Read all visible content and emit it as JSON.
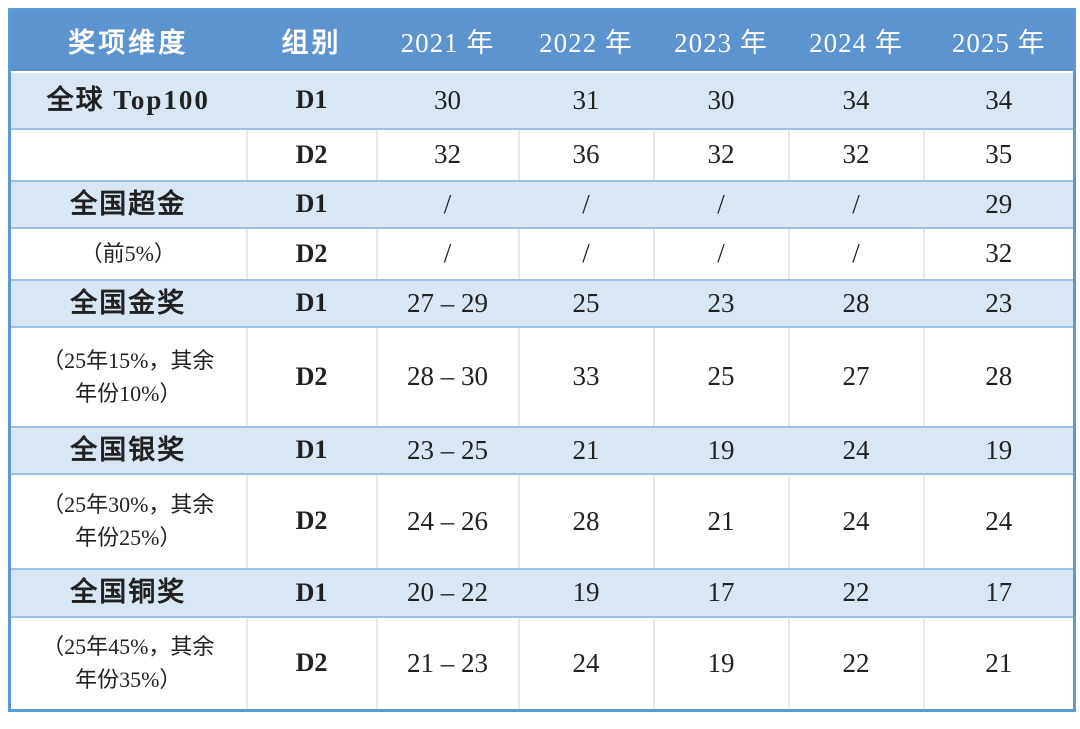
{
  "colors": {
    "header_bg": "#5b94ce",
    "header_text": "#ffffff",
    "shaded_row_bg": "#d9e7f4",
    "row_line": "#9dc0e4",
    "column_line": "#e8e8ec",
    "outer_border": "#5b9bd5",
    "body_text": "#212121"
  },
  "chart_data": {
    "type": "table",
    "columns": [
      {
        "label": "奖项维度",
        "kind": "cn"
      },
      {
        "label": "组别",
        "kind": "cn"
      },
      {
        "label": "2021 年",
        "kind": "year"
      },
      {
        "label": "2022 年",
        "kind": "year"
      },
      {
        "label": "2023 年",
        "kind": "year"
      },
      {
        "label": "2024 年",
        "kind": "year"
      },
      {
        "label": "2025 年",
        "kind": "year"
      }
    ],
    "rows": [
      {
        "dimension": "全球 Top100",
        "dimension_bold": true,
        "group": "D1",
        "values": [
          "30",
          "31",
          "30",
          "34",
          "34"
        ],
        "shaded": true
      },
      {
        "dimension": "",
        "dimension_bold": false,
        "group": "D2",
        "values": [
          "32",
          "36",
          "32",
          "32",
          "35"
        ],
        "shaded": false
      },
      {
        "dimension": "全国超金",
        "dimension_bold": true,
        "group": "D1",
        "values": [
          "/",
          "/",
          "/",
          "/",
          "29"
        ],
        "shaded": true
      },
      {
        "dimension": "（前5%）",
        "dimension_bold": false,
        "group": "D2",
        "values": [
          "/",
          "/",
          "/",
          "/",
          "32"
        ],
        "shaded": false
      },
      {
        "dimension": "全国金奖",
        "dimension_bold": true,
        "group": "D1",
        "values": [
          "27 – 29",
          "25",
          "23",
          "28",
          "23"
        ],
        "shaded": true
      },
      {
        "dimension": "（25年15%，其余\n年份10%）",
        "dimension_bold": false,
        "group": "D2",
        "values": [
          "28 – 30",
          "33",
          "25",
          "27",
          "28"
        ],
        "shaded": false
      },
      {
        "dimension": "全国银奖",
        "dimension_bold": true,
        "group": "D1",
        "values": [
          "23 – 25",
          "21",
          "19",
          "24",
          "19"
        ],
        "shaded": true
      },
      {
        "dimension": "（25年30%，其余\n年份25%）",
        "dimension_bold": false,
        "group": "D2",
        "values": [
          "24 – 26",
          "28",
          "21",
          "24",
          "24"
        ],
        "shaded": false
      },
      {
        "dimension": "全国铜奖",
        "dimension_bold": true,
        "group": "D1",
        "values": [
          "20 – 22",
          "19",
          "17",
          "22",
          "17"
        ],
        "shaded": true
      },
      {
        "dimension": "（25年45%，其余\n年份35%）",
        "dimension_bold": false,
        "group": "D2",
        "values": [
          "21 – 23",
          "24",
          "19",
          "22",
          "21"
        ],
        "shaded": false
      }
    ]
  }
}
